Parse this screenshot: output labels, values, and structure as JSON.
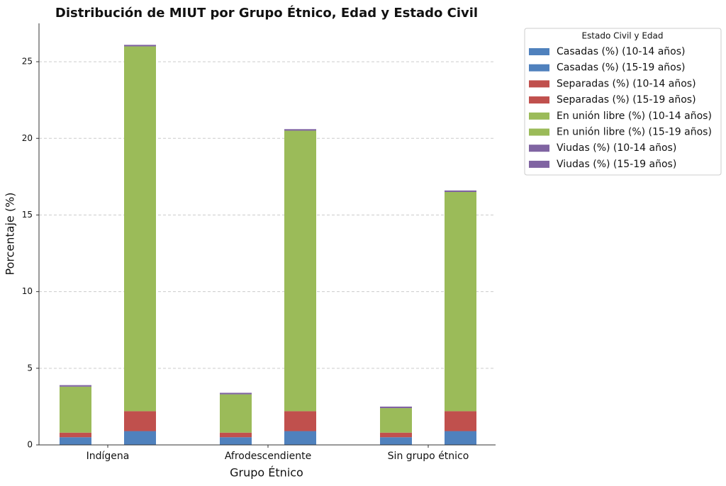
{
  "chart_data": {
    "type": "bar",
    "title": "Distribución de MIUT por Grupo Étnico, Edad y Estado Civil",
    "x_label": "Grupo Étnico",
    "y_label": "Porcentaje (%)",
    "legend_title": "Estado Civil y Edad",
    "legend_position": "outside right",
    "categories": [
      "Indígena",
      "Afrodescendiente",
      "Sin grupo étnico"
    ],
    "stacked": true,
    "grid": true,
    "ylim": [
      0,
      27.5
    ],
    "yticks": [
      0,
      5,
      10,
      15,
      20,
      25
    ],
    "series": [
      {
        "name": "Casadas (%) (10-14 años)",
        "color": "#4f81bd",
        "values": [
          0.5,
          0.5,
          0.5
        ]
      },
      {
        "name": "Casadas (%) (15-19 años)",
        "color": "#4f81bd",
        "values": [
          0.9,
          0.9,
          0.9
        ]
      },
      {
        "name": "Separadas (%) (10-14 años)",
        "color": "#c0504d",
        "values": [
          0.3,
          0.3,
          0.3
        ]
      },
      {
        "name": "Separadas (%) (15-19 años)",
        "color": "#c0504d",
        "values": [
          1.3,
          1.3,
          1.3
        ]
      },
      {
        "name": "En unión libre (%) (10-14 años)",
        "color": "#9bbb59",
        "values": [
          3.0,
          2.5,
          1.6
        ]
      },
      {
        "name": "En unión libre (%) (15-19 años)",
        "color": "#9bbb59",
        "values": [
          23.8,
          18.3,
          14.3
        ]
      },
      {
        "name": "Viudas (%) (10-14 años)",
        "color": "#8064a2",
        "values": [
          0.1,
          0.1,
          0.1
        ]
      },
      {
        "name": "Viudas (%) (15-19 años)",
        "color": "#8064a2",
        "values": [
          0.1,
          0.1,
          0.1
        ]
      }
    ]
  }
}
